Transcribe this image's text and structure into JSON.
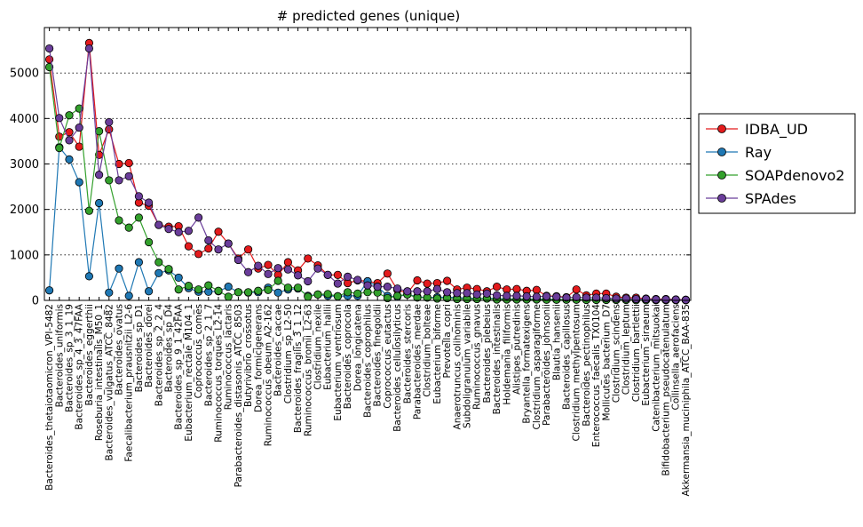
{
  "chart_data": {
    "type": "line",
    "title": "# predicted genes (unique)",
    "xlabel": "",
    "ylabel": "",
    "ylim": [
      0,
      6000
    ],
    "yticks": [
      0,
      1000,
      2000,
      3000,
      4000,
      5000
    ],
    "grid": "horizontal dotted",
    "legend_position": "outside right",
    "categories": [
      "Bacteroides_thetaiotaomicron_VPI-5482",
      "Bacteroides_uniformis",
      "Bacteroides_sp_3_1_19",
      "Bacteroides_sp_4_3_47FAA",
      "Bacteroides_eggerthii",
      "Roseburia_intestinalis_M50_1",
      "Bacteroides_vulgatus_ATCC_8482",
      "Bacteroides_ovatus",
      "Faecalibacterium_prausnitzii_L2-6",
      "Bacteroides_sp_D1",
      "Bacteroides_dorei",
      "Bacteroides_sp_2_2_4",
      "Bacteroides_sp_D4",
      "Bacteroides_sp_9_1_42FAA",
      "Eubacterium_rectale_M104_1",
      "Coprococcus_comes",
      "Bacteroides_sp_2_1_7",
      "Ruminococcus_torques_L2-14",
      "Ruminococcus_lactaris",
      "Parabacteroides_distasonis_ATCC_8503",
      "Butyrivibrio_crossotus",
      "Dorea_formicigenerans",
      "Ruminococcus_obeum_A2-162",
      "Bacteroides_caccae",
      "Clostridium_sp_L2-50",
      "Bacteroides_fragilis_3_1_12",
      "Ruminococcus_bromii_L2-63",
      "Clostridium_nexile",
      "Eubacterium_hallii",
      "Eubacterium_ventriosum",
      "Bacteroides_coprocola",
      "Dorea_longicatena",
      "Bacteroides_coprophilus",
      "Bacteroides_finegoldii",
      "Coprococcus_eutactus",
      "Bacteroides_cellulosilyticus",
      "Bacteroides_stercoris",
      "Parabacteroides_merdae",
      "Clostridium_bolteae",
      "Eubacterium_biforme",
      "Prevotella_copri",
      "Anaerotruncus_colihominis",
      "Subdoligranulum_variabile",
      "Ruminococcus_gnavus",
      "Bacteroides_plebeius",
      "Bacteroides_intestinalis",
      "Holdemania_filiformis",
      "Alistipes_putredinis",
      "Bryantella_formatexigens",
      "Clostridium_asparagiforme",
      "Parabacteroides_johnsonii",
      "Blautia_hansenii",
      "Bacteroides_capillosus",
      "Clostridium_methylpentosum",
      "Bacteroides_pectinophilus",
      "Enterococcus_faecalis_TX0104",
      "Mollicutes_bacterium_D7",
      "Clostridium_scindens",
      "Clostridium_leptum",
      "Clostridium_bartlettii",
      "Eubacterium_siraeum",
      "Catenibacterium_mitsuokai",
      "Bifidobacterium_pseudocatenulatum",
      "Collinsella_aerofaciens",
      "Akkermansia_muciniphila_ATCC_BAA-835"
    ],
    "series": [
      {
        "name": "IDBA_UD",
        "color": "#e41a1c",
        "values": [
          5300,
          3600,
          3700,
          3380,
          5660,
          3200,
          3760,
          3000,
          3020,
          2150,
          2080,
          1660,
          1620,
          1630,
          1190,
          1020,
          1140,
          1510,
          1250,
          920,
          1120,
          700,
          780,
          560,
          840,
          660,
          920,
          770,
          560,
          560,
          380,
          440,
          420,
          380,
          590,
          230,
          160,
          440,
          370,
          380,
          430,
          240,
          280,
          250,
          200,
          300,
          240,
          250,
          210,
          230,
          100,
          90,
          70,
          240,
          110,
          150,
          150,
          80,
          60,
          60,
          40,
          30,
          30,
          20,
          15
        ]
      },
      {
        "name": "Ray",
        "color": "#1f78b4",
        "values": [
          220,
          3370,
          3100,
          2600,
          530,
          2140,
          170,
          700,
          100,
          840,
          200,
          600,
          660,
          500,
          270,
          190,
          190,
          200,
          300,
          180,
          170,
          180,
          280,
          170,
          240,
          260,
          100,
          130,
          100,
          90,
          100,
          100,
          420,
          300,
          100,
          80,
          130,
          80,
          60,
          70,
          70,
          60,
          50,
          40,
          50,
          40,
          30,
          30,
          30,
          30,
          30,
          20,
          20,
          20,
          20,
          20,
          15,
          15,
          15,
          10,
          10,
          10,
          10,
          10,
          5
        ]
      },
      {
        "name": "SOAPdenovo2",
        "color": "#33a02c",
        "values": [
          5130,
          3350,
          4070,
          4220,
          1970,
          3720,
          2640,
          1760,
          1600,
          1820,
          1280,
          840,
          690,
          240,
          320,
          240,
          330,
          210,
          80,
          180,
          180,
          210,
          230,
          430,
          280,
          280,
          80,
          130,
          140,
          90,
          180,
          150,
          180,
          170,
          50,
          100,
          130,
          60,
          60,
          40,
          50,
          30,
          30,
          30,
          40,
          20,
          20,
          20,
          20,
          20,
          15,
          15,
          15,
          15,
          10,
          10,
          10,
          10,
          10,
          5,
          5,
          5,
          5,
          5,
          5
        ]
      },
      {
        "name": "SPAdes",
        "color": "#6a3d9a",
        "values": [
          5540,
          4010,
          3520,
          3800,
          5540,
          2760,
          3920,
          2640,
          2730,
          2290,
          2150,
          1660,
          1570,
          1500,
          1530,
          1820,
          1320,
          1120,
          1250,
          890,
          620,
          760,
          580,
          710,
          680,
          550,
          420,
          700,
          560,
          370,
          520,
          450,
          330,
          300,
          300,
          260,
          200,
          200,
          200,
          250,
          180,
          160,
          160,
          130,
          150,
          110,
          100,
          100,
          90,
          80,
          90,
          80,
          60,
          70,
          60,
          60,
          50,
          40,
          40,
          30,
          30,
          20,
          20,
          15,
          10
        ]
      }
    ]
  }
}
